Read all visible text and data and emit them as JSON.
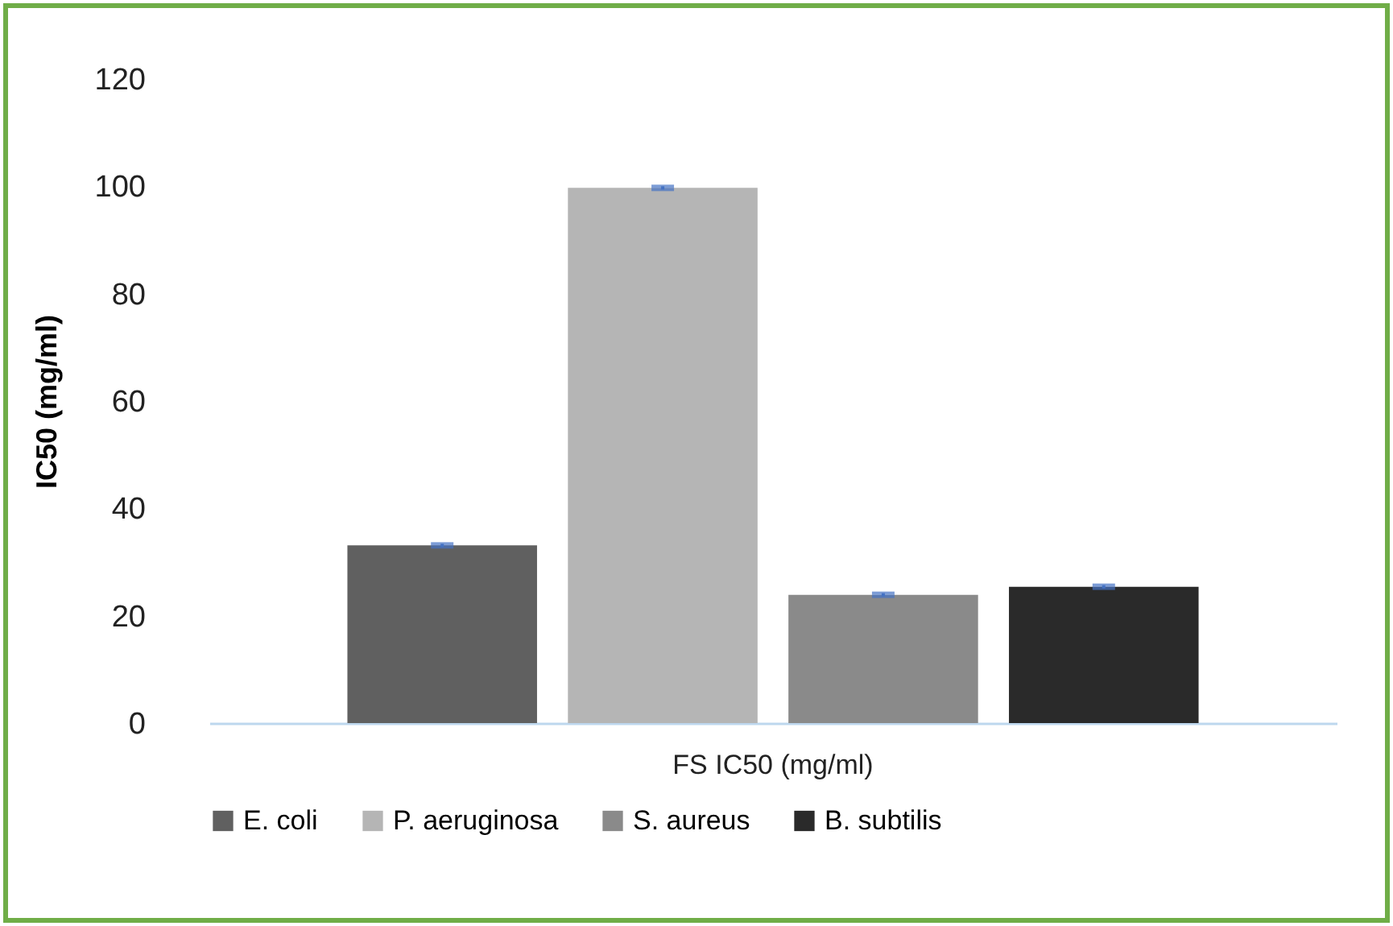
{
  "chart_data": {
    "type": "bar",
    "ylabel": "IC50 (mg/ml)",
    "categories": [
      "FS IC50 (mg/ml)"
    ],
    "series": [
      {
        "name": "E. coli",
        "color": "#606060",
        "values": [
          33.1
        ],
        "errors": [
          0.3
        ]
      },
      {
        "name": "P. aeruginosa",
        "color": "#b5b5b5",
        "values": [
          99.7
        ],
        "errors": [
          0.3
        ]
      },
      {
        "name": "S. aureus",
        "color": "#8a8a8a",
        "values": [
          23.9
        ],
        "errors": [
          0.3
        ]
      },
      {
        "name": "B. subtilis",
        "color": "#2a2a2a",
        "values": [
          25.4
        ],
        "errors": [
          0.3
        ]
      }
    ],
    "ylim": [
      0,
      120
    ],
    "yticks": [
      0,
      20,
      40,
      60,
      80,
      100,
      120
    ],
    "grid": false,
    "legend": "bottom"
  }
}
